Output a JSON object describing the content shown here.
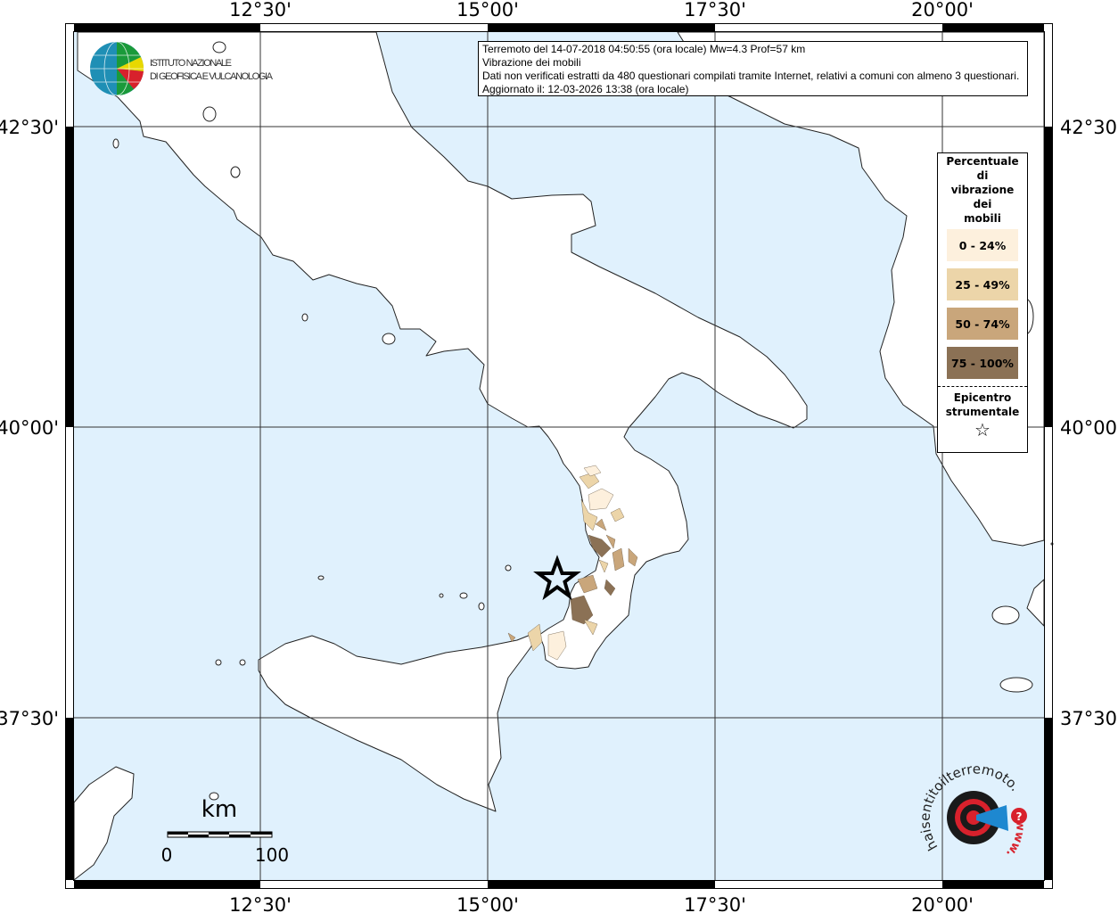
{
  "info_box": {
    "line1": "Terremoto del 14-07-2018 04:50:55 (ora locale) Mw=4.3 Prof=57 km",
    "line2": "Vibrazione dei mobili",
    "line3": "Dati non verificati estratti da 480 questionari compilati tramite Internet, relativi a comuni con almeno 3 questionari.",
    "line4": "Aggiornato il: 12-03-2026 13:38 (ora locale)"
  },
  "logo_ingv": {
    "line1": "ISTITUTO NAZIONALE",
    "line2": "DI GEOFISICA E VULCANOLOGIA"
  },
  "logo_haisentito": {
    "text": "haisentitoilterremoto.it",
    "www": "www."
  },
  "axes": {
    "lon_labels": [
      "12°30'",
      "15°00'",
      "17°30'",
      "20°00'"
    ],
    "lat_labels": [
      "42°30'",
      "40°00'",
      "37°30'"
    ]
  },
  "legend": {
    "title_lines": [
      "Percentuale",
      "di",
      "vibrazione",
      "dei",
      "mobili"
    ],
    "classes": [
      {
        "label": "0 - 24%",
        "color": "#fdf0dd"
      },
      {
        "label": "25 - 49%",
        "color": "#ecd5a9"
      },
      {
        "label": "50 - 74%",
        "color": "#c9a67b"
      },
      {
        "label": "75 - 100%",
        "color": "#8b7155"
      }
    ],
    "epicenter_lines": [
      "Epicentro",
      "strumentale"
    ],
    "epicenter_symbol": "☆"
  },
  "scale_bar": {
    "unit": "km",
    "start": "0",
    "end": "100"
  },
  "colors": {
    "sea": "#e0f1fd",
    "land": "#ffffff",
    "frame": "#000000"
  }
}
